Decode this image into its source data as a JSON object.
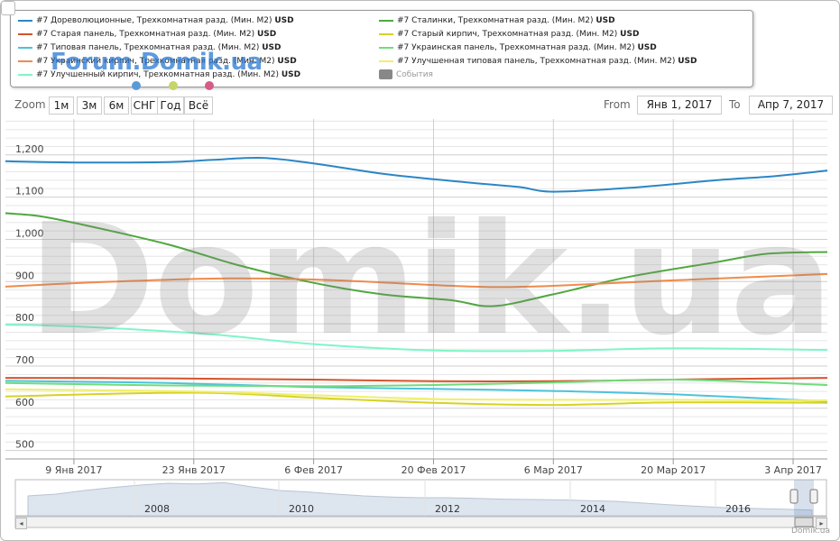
{
  "legend": {
    "items": [
      {
        "label": "#7 Дореволюционные, Трехкомнатная разд. (Мин. М2)",
        "unit": "USD",
        "color": "#2b86c5"
      },
      {
        "label": "#7 Сталинки, Трехкомнатная разд. (Мин. М2)",
        "unit": "USD",
        "color": "#4fa83d"
      },
      {
        "label": "#7 Старая панель, Трехкомнатная разд. (Мин. М2)",
        "unit": "USD",
        "color": "#d4542a"
      },
      {
        "label": "#7 Старый кирпич, Трехкомнатная разд. (Мин. М2)",
        "unit": "USD",
        "color": "#d6d226"
      },
      {
        "label": "#7 Типовая панель, Трехкомнатная разд. (Мин. М2)",
        "unit": "USD",
        "color": "#4cc2dc"
      },
      {
        "label": "#7 Украинская панель, Трехкомнатная разд. (Мин. М2)",
        "unit": "USD",
        "color": "#6fdc7c"
      },
      {
        "label": "#7 Украинский кирпич, Трехкомнатная разд. (Мин. М2)",
        "unit": "USD",
        "color": "#f08a4b"
      },
      {
        "label": "#7 Улучшенная типовая панель, Трехкомнатная разд. (Мин. М2)",
        "unit": "USD",
        "color": "#f0ef6a"
      },
      {
        "label": "#7 Улучшенный кирпич, Трехкомнатная разд. (Мин. М2)",
        "unit": "USD",
        "color": "#7ff5c8"
      },
      {
        "label": "События",
        "unit": "",
        "color": "#888888"
      }
    ]
  },
  "watermark": {
    "small": "Forum.Domik.ua",
    "big": "Domik.ua"
  },
  "toolbar": {
    "zoom_label": "Zoom",
    "buttons": [
      "1м",
      "3м",
      "6м",
      "СНГ",
      "Год",
      "Всё"
    ],
    "from_label": "From",
    "from_value": "Янв 1, 2017",
    "to_label": "To",
    "to_value": "Апр 7, 2017"
  },
  "credit": "Domik.ua",
  "chart_data": {
    "type": "line",
    "x_start": "2017-01-01",
    "x_end": "2017-04-07",
    "x_ticks": [
      {
        "date": "2017-01-09",
        "label": "9 Янв 2017"
      },
      {
        "date": "2017-01-23",
        "label": "23 Янв 2017"
      },
      {
        "date": "2017-02-06",
        "label": "6 Фев 2017"
      },
      {
        "date": "2017-02-20",
        "label": "20 Фев 2017"
      },
      {
        "date": "2017-03-06",
        "label": "6 Мар 2017"
      },
      {
        "date": "2017-03-20",
        "label": "20 Мар 2017"
      },
      {
        "date": "2017-04-03",
        "label": "3 Апр 2017"
      }
    ],
    "y_ticks": [
      500,
      600,
      700,
      800,
      900,
      1000,
      1100,
      1200
    ],
    "y_tick_labels": [
      "500",
      "600",
      "700",
      "800",
      "900",
      "1,000",
      "1,100",
      "1,200"
    ],
    "ylim": [
      480,
      1285
    ],
    "grid": true,
    "series": [
      {
        "name": "#7 Дореволюционные, Трехкомнатная разд. (Мин. М2) USD",
        "color": "#2b86c5",
        "points": [
          [
            "2017-01-01",
            1185
          ],
          [
            "2017-01-10",
            1182
          ],
          [
            "2017-01-20",
            1183
          ],
          [
            "2017-01-25",
            1188
          ],
          [
            "2017-01-31",
            1193
          ],
          [
            "2017-02-06",
            1180
          ],
          [
            "2017-02-15",
            1153
          ],
          [
            "2017-02-25",
            1133
          ],
          [
            "2017-03-02",
            1124
          ],
          [
            "2017-03-06",
            1113
          ],
          [
            "2017-03-15",
            1122
          ],
          [
            "2017-03-25",
            1140
          ],
          [
            "2017-04-01",
            1150
          ],
          [
            "2017-04-07",
            1163
          ]
        ]
      },
      {
        "name": "#7 Сталинки, Трехкомнатная разд. (Мин. М2) USD",
        "color": "#4fa83d",
        "points": [
          [
            "2017-01-01",
            1062
          ],
          [
            "2017-01-05",
            1055
          ],
          [
            "2017-01-10",
            1035
          ],
          [
            "2017-01-20",
            988
          ],
          [
            "2017-01-28",
            940
          ],
          [
            "2017-02-06",
            897
          ],
          [
            "2017-02-14",
            870
          ],
          [
            "2017-02-22",
            856
          ],
          [
            "2017-02-27",
            842
          ],
          [
            "2017-03-06",
            870
          ],
          [
            "2017-03-15",
            912
          ],
          [
            "2017-03-25",
            946
          ],
          [
            "2017-03-31",
            966
          ],
          [
            "2017-04-07",
            970
          ]
        ]
      },
      {
        "name": "#7 Старая панель, Трехкомнатная разд. (Мин. М2) USD",
        "color": "#d4542a",
        "points": [
          [
            "2017-01-01",
            672
          ],
          [
            "2017-01-20",
            671
          ],
          [
            "2017-02-06",
            668
          ],
          [
            "2017-02-20",
            664
          ],
          [
            "2017-03-06",
            664
          ],
          [
            "2017-03-20",
            668
          ],
          [
            "2017-04-07",
            672
          ]
        ]
      },
      {
        "name": "#7 Старый кирпич, Трехкомнатная разд. (Мин. М2) USD",
        "color": "#d6d226",
        "points": [
          [
            "2017-01-01",
            628
          ],
          [
            "2017-01-23",
            637
          ],
          [
            "2017-02-06",
            625
          ],
          [
            "2017-02-20",
            613
          ],
          [
            "2017-03-06",
            608
          ],
          [
            "2017-03-20",
            614
          ],
          [
            "2017-04-07",
            613
          ]
        ]
      },
      {
        "name": "#7 Типовая панель, Трехкомнатная разд. (Мин. М2) USD",
        "color": "#4cc2dc",
        "points": [
          [
            "2017-01-01",
            665
          ],
          [
            "2017-01-20",
            660
          ],
          [
            "2017-02-06",
            650
          ],
          [
            "2017-02-20",
            646
          ],
          [
            "2017-03-06",
            641
          ],
          [
            "2017-03-20",
            633
          ],
          [
            "2017-04-07",
            616
          ]
        ]
      },
      {
        "name": "#7 Украинская панель, Трехкомнатная разд. (Мин. М2) USD",
        "color": "#6fdc7c",
        "points": [
          [
            "2017-01-01",
            660
          ],
          [
            "2017-01-20",
            654
          ],
          [
            "2017-02-06",
            652
          ],
          [
            "2017-02-20",
            655
          ],
          [
            "2017-03-06",
            661
          ],
          [
            "2017-03-20",
            668
          ],
          [
            "2017-04-07",
            655
          ]
        ]
      },
      {
        "name": "#7 Украинский кирпич, Трехкомнатная разд. (Мин. М2) USD",
        "color": "#f08a4b",
        "points": [
          [
            "2017-01-01",
            888
          ],
          [
            "2017-01-10",
            897
          ],
          [
            "2017-01-25",
            907
          ],
          [
            "2017-02-06",
            905
          ],
          [
            "2017-02-20",
            892
          ],
          [
            "2017-02-27",
            887
          ],
          [
            "2017-03-06",
            890
          ],
          [
            "2017-03-20",
            903
          ],
          [
            "2017-04-07",
            918
          ]
        ]
      },
      {
        "name": "#7 Улучшенная типовая панель, Трехкомнатная разд. (Мин. М2) USD",
        "color": "#f0ef6a",
        "points": [
          [
            "2017-01-01",
            645
          ],
          [
            "2017-01-23",
            640
          ],
          [
            "2017-02-06",
            631
          ],
          [
            "2017-02-20",
            622
          ],
          [
            "2017-03-06",
            620
          ],
          [
            "2017-03-20",
            620
          ],
          [
            "2017-04-07",
            618
          ]
        ]
      },
      {
        "name": "#7 Улучшенный кирпич, Трехкомнатная разд. (Мин. М2) USD",
        "color": "#7ff5c8",
        "points": [
          [
            "2017-01-01",
            798
          ],
          [
            "2017-01-10",
            793
          ],
          [
            "2017-01-25",
            775
          ],
          [
            "2017-02-06",
            752
          ],
          [
            "2017-02-20",
            737
          ],
          [
            "2017-03-06",
            736
          ],
          [
            "2017-03-20",
            742
          ],
          [
            "2017-04-07",
            738
          ]
        ]
      }
    ],
    "navigator": {
      "year_labels": [
        "2008",
        "2010",
        "2012",
        "2014",
        "2016"
      ]
    }
  }
}
